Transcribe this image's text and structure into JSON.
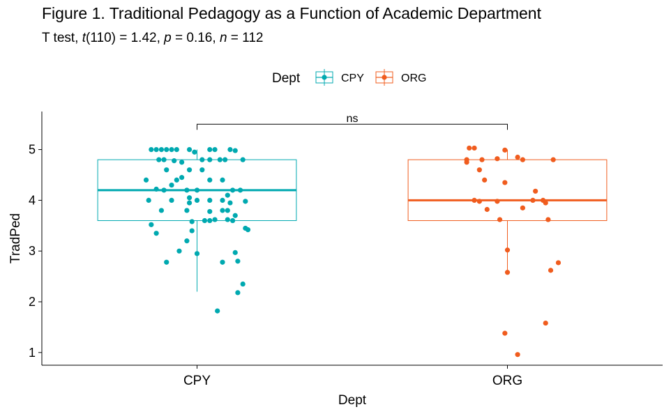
{
  "header": {
    "title": "Figure 1. Traditional Pedagogy as a Function of Academic Department",
    "subtitle": {
      "test": "T test, ",
      "t_symbol": "t",
      "t_value": "(110) = 1.42, ",
      "p_symbol": "p",
      "p_value": " = 0.16, ",
      "n_symbol": "n",
      "n_value": " = 112"
    }
  },
  "chart_data": {
    "type": "boxplot-jitter",
    "title": "Figure 1. Traditional Pedagogy as a Function of Academic Department",
    "xlabel": "Dept",
    "ylabel": "TradPed",
    "ylim": [
      0.75,
      5.75
    ],
    "yticks": [
      1,
      2,
      3,
      4,
      5
    ],
    "categories": [
      "CPY",
      "ORG"
    ],
    "legend": {
      "title": "Dept",
      "position": "top",
      "entries": [
        "CPY",
        "ORG"
      ]
    },
    "significance": {
      "label": "ns",
      "from": "CPY",
      "to": "ORG",
      "y": 5.5
    },
    "series": [
      {
        "name": "CPY",
        "color": "#00A9B0",
        "box": {
          "min": 2.2,
          "q1": 3.6,
          "median": 4.2,
          "q3": 4.8,
          "max": 5.0
        },
        "points": [
          [
            -0.18,
            5.0
          ],
          [
            -0.16,
            5.0
          ],
          [
            -0.14,
            5.0
          ],
          [
            -0.12,
            5.0
          ],
          [
            -0.1,
            5.0
          ],
          [
            -0.08,
            5.0
          ],
          [
            -0.03,
            5.0
          ],
          [
            -0.01,
            4.95
          ],
          [
            0.05,
            5.0
          ],
          [
            0.07,
            5.0
          ],
          [
            0.13,
            5.0
          ],
          [
            0.15,
            4.98
          ],
          [
            -0.2,
            4.4
          ],
          [
            -0.15,
            4.8
          ],
          [
            -0.13,
            4.8
          ],
          [
            -0.12,
            4.6
          ],
          [
            -0.09,
            4.78
          ],
          [
            -0.06,
            4.75
          ],
          [
            -0.03,
            4.6
          ],
          [
            0.02,
            4.8
          ],
          [
            0.05,
            4.8
          ],
          [
            0.09,
            4.8
          ],
          [
            0.11,
            4.8
          ],
          [
            0.18,
            4.8
          ],
          [
            -0.16,
            4.22
          ],
          [
            -0.13,
            4.2
          ],
          [
            -0.1,
            4.3
          ],
          [
            -0.08,
            4.4
          ],
          [
            -0.06,
            4.45
          ],
          [
            -0.04,
            4.2
          ],
          [
            0.0,
            4.2
          ],
          [
            0.02,
            4.6
          ],
          [
            0.05,
            4.4
          ],
          [
            0.1,
            4.4
          ],
          [
            0.14,
            4.2
          ],
          [
            0.17,
            4.2
          ],
          [
            -0.19,
            4.0
          ],
          [
            -0.1,
            4.0
          ],
          [
            -0.03,
            3.95
          ],
          [
            -0.03,
            4.05
          ],
          [
            0.0,
            4.0
          ],
          [
            0.05,
            4.0
          ],
          [
            0.1,
            4.0
          ],
          [
            0.12,
            4.1
          ],
          [
            0.13,
            3.95
          ],
          [
            0.19,
            3.98
          ],
          [
            -0.14,
            3.8
          ],
          [
            -0.04,
            3.8
          ],
          [
            0.05,
            3.78
          ],
          [
            0.1,
            3.8
          ],
          [
            0.12,
            3.8
          ],
          [
            0.15,
            3.7
          ],
          [
            -0.18,
            3.52
          ],
          [
            -0.16,
            3.35
          ],
          [
            -0.02,
            3.58
          ],
          [
            0.03,
            3.6
          ],
          [
            0.05,
            3.6
          ],
          [
            0.07,
            3.62
          ],
          [
            0.12,
            3.62
          ],
          [
            0.14,
            3.6
          ],
          [
            0.19,
            3.45
          ],
          [
            0.2,
            3.42
          ],
          [
            -0.04,
            3.2
          ],
          [
            -0.02,
            3.4
          ],
          [
            -0.07,
            3.0
          ],
          [
            0.0,
            2.95
          ],
          [
            0.15,
            2.97
          ],
          [
            -0.12,
            2.78
          ],
          [
            0.1,
            2.78
          ],
          [
            0.16,
            2.8
          ],
          [
            0.18,
            2.35
          ],
          [
            0.16,
            2.18
          ],
          [
            0.08,
            1.82
          ]
        ]
      },
      {
        "name": "ORG",
        "color": "#F05C1E",
        "box": {
          "min": 2.6,
          "q1": 3.6,
          "median": 4.0,
          "q3": 4.8,
          "max": 5.0
        },
        "points": [
          [
            -0.15,
            5.03
          ],
          [
            -0.13,
            5.03
          ],
          [
            -0.01,
            4.99
          ],
          [
            -0.16,
            4.8
          ],
          [
            -0.16,
            4.75
          ],
          [
            -0.1,
            4.8
          ],
          [
            -0.04,
            4.82
          ],
          [
            0.04,
            4.85
          ],
          [
            0.06,
            4.8
          ],
          [
            0.18,
            4.8
          ],
          [
            -0.11,
            4.6
          ],
          [
            -0.09,
            4.4
          ],
          [
            -0.01,
            4.35
          ],
          [
            0.11,
            4.18
          ],
          [
            -0.13,
            4.0
          ],
          [
            -0.11,
            3.98
          ],
          [
            -0.08,
            3.82
          ],
          [
            -0.04,
            3.98
          ],
          [
            0.06,
            3.85
          ],
          [
            0.1,
            4.0
          ],
          [
            0.14,
            4.0
          ],
          [
            0.15,
            3.95
          ],
          [
            -0.03,
            3.62
          ],
          [
            0.16,
            3.62
          ],
          [
            0.0,
            3.02
          ],
          [
            0.17,
            2.62
          ],
          [
            0.2,
            2.77
          ],
          [
            0.0,
            2.58
          ],
          [
            0.15,
            1.58
          ],
          [
            -0.01,
            1.38
          ],
          [
            0.04,
            0.96
          ]
        ]
      }
    ]
  }
}
